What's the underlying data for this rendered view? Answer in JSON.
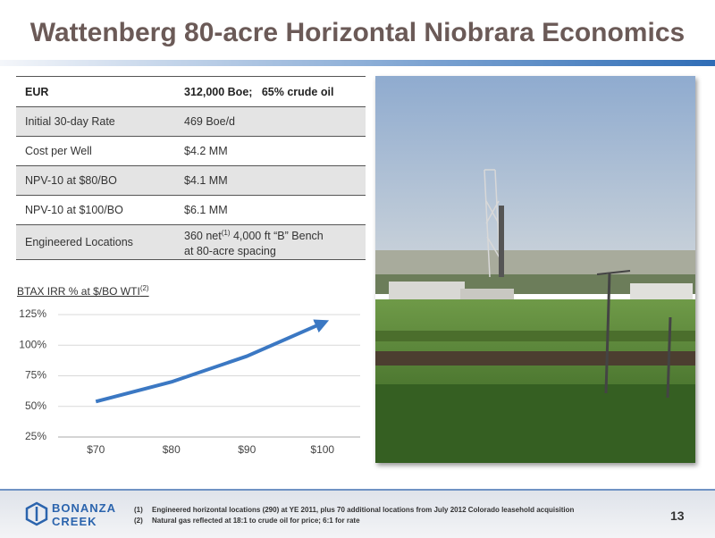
{
  "header": {
    "title": "Wattenberg 80-acre Horizontal Niobrara Economics"
  },
  "table": {
    "rows": [
      [
        "EUR",
        "312,000 Boe;   65% crude oil"
      ],
      [
        "Initial 30-day Rate",
        "469 Boe/d"
      ],
      [
        "Cost per Well",
        "$4.2 MM"
      ],
      [
        "NPV-10 at $80/BO",
        "$4.1 MM"
      ],
      [
        "NPV-10 at $100/BO",
        "$6.1 MM"
      ],
      [
        "Engineered Locations",
        [
          "360 net",
          "(1)",
          " 4,000 ft “B” Bench",
          "at 80-acre spacing"
        ]
      ]
    ]
  },
  "chart": {
    "type": "line",
    "title": "BTAX IRR % at $/BO WTI",
    "title_note": "(2)",
    "categories": [
      "$70",
      "$80",
      "$90",
      "$100"
    ],
    "series": [
      {
        "name": "BTAX IRR",
        "color": "#3b78c3",
        "values": [
          54,
          70,
          91,
          118
        ]
      }
    ],
    "ylim": [
      25,
      125
    ],
    "yticks": [
      {
        "value": 25,
        "label": "25%"
      },
      {
        "value": 50,
        "label": "50%"
      },
      {
        "value": 75,
        "label": "75%"
      },
      {
        "value": 100,
        "label": "100%"
      },
      {
        "value": 125,
        "label": "125%"
      }
    ],
    "grid": true
  },
  "footer": {
    "logo": [
      "BONANZA",
      "CREEK"
    ],
    "notes": [
      {
        "mark": "(1)",
        "text": "Engineered horizontal locations (290) at YE 2011, plus 70 additional locations from July 2012 Colorado leasehold acquisition"
      },
      {
        "mark": "(2)",
        "text": "Natural gas reflected at 18:1 to crude oil for price; 6:1 for rate"
      }
    ],
    "page": "13"
  }
}
